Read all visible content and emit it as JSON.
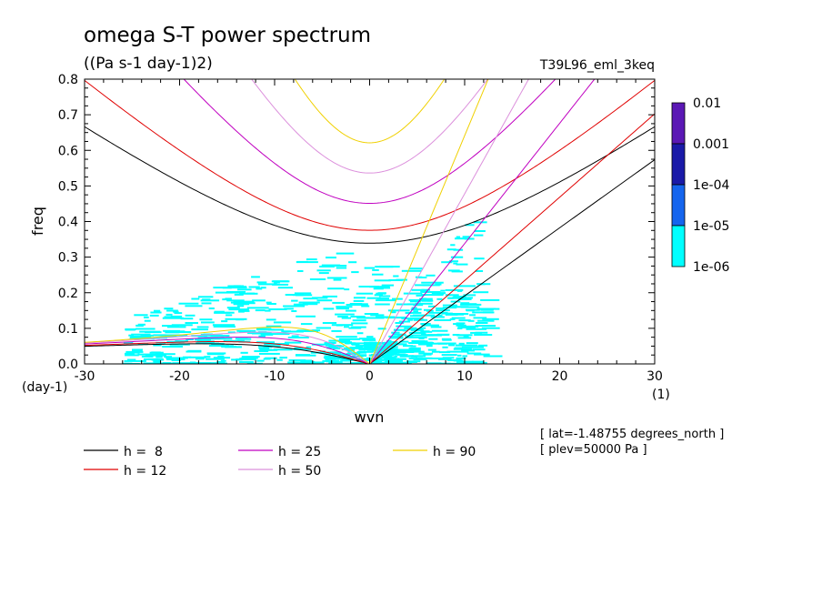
{
  "chart_data": {
    "type": "line",
    "title": "omega S-T power spectrum",
    "subtitle": "((Pa s-1 day-1)2)",
    "run_label": "T39L96_eml_3keq",
    "xlabel": "wvn",
    "ylabel": "freq",
    "x_unit": "(1)",
    "y_unit": "(day-1)",
    "xlim": [
      -30,
      30
    ],
    "ylim": [
      0,
      0.8
    ],
    "x_ticks": [
      "-30",
      "-20",
      "-10",
      "0",
      "10",
      "20",
      "30"
    ],
    "y_ticks": [
      "0.0",
      "0.1",
      "0.2",
      "0.3",
      "0.4",
      "0.5",
      "0.6",
      "0.7",
      "0.8"
    ],
    "grid": false,
    "colorbar": {
      "labels": [
        "0.01",
        "0.001",
        "1e-04",
        "1e-05",
        "1e-06"
      ],
      "colors": [
        "#5b18b5",
        "#1a1aa8",
        "#1565ee",
        "#00ffff"
      ]
    },
    "shading_color": "#00ffff",
    "series": [
      {
        "name": "h =  8",
        "equivalent_depth": 8,
        "color": "#000000"
      },
      {
        "name": "h = 12",
        "equivalent_depth": 12,
        "color": "#e00000"
      },
      {
        "name": "h = 25",
        "equivalent_depth": 25,
        "color": "#c000c0"
      },
      {
        "name": "h = 50",
        "equivalent_depth": 50,
        "color": "#dc90dc"
      },
      {
        "name": "h = 90",
        "equivalent_depth": 90,
        "color": "#f0d000"
      }
    ],
    "annotations": [
      "[ lat=-1.48755 degrees_north ]",
      "[ plev=50000 Pa ]"
    ]
  }
}
